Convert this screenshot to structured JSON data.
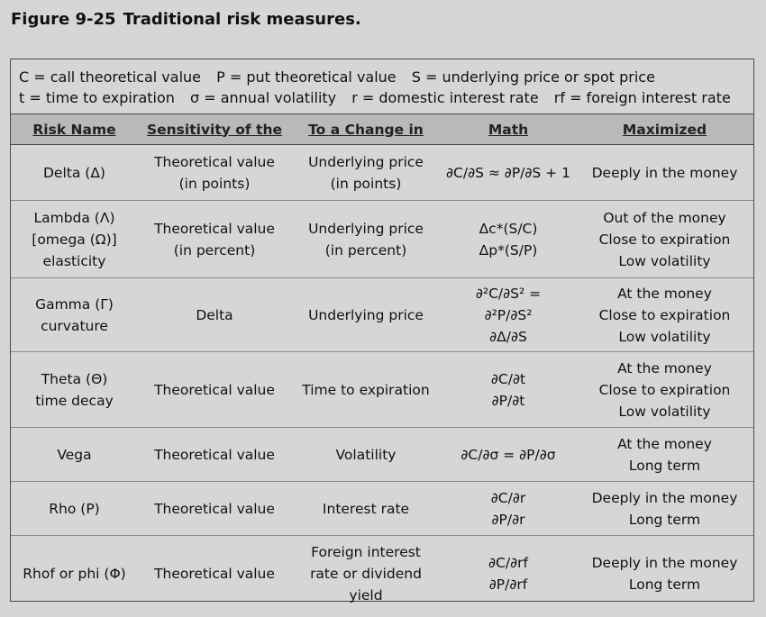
{
  "figure": {
    "number": "Figure 9-25",
    "title": "Traditional risk measures."
  },
  "legend": {
    "line1": [
      "C = call theoretical value",
      "P = put theoretical value",
      "S = underlying price or spot price"
    ],
    "line2": [
      "t = time to expiration",
      "σ = annual volatility",
      "r = domestic interest rate",
      "rf = foreign interest rate"
    ]
  },
  "table": {
    "headers": [
      "Risk Name",
      "Sensitivity of the",
      "To a Change in",
      "Math",
      "Maximized"
    ],
    "rows": [
      {
        "risk_name": [
          "Delta (Δ)"
        ],
        "sensitivity": [
          "Theoretical value",
          "(in points)"
        ],
        "change_in": [
          "Underlying price",
          "(in points)"
        ],
        "math": [
          "∂C/∂S ≈ ∂P/∂S + 1"
        ],
        "maximized": [
          "Deeply in the money"
        ]
      },
      {
        "risk_name": [
          "Lambda (Λ)",
          "[omega (Ω)]",
          "elasticity"
        ],
        "sensitivity": [
          "Theoretical value",
          "(in percent)"
        ],
        "change_in": [
          "Underlying price",
          "(in percent)"
        ],
        "math": [
          "Δc*(S/C)",
          "Δp*(S/P)"
        ],
        "maximized": [
          "Out of the money",
          "Close to expiration",
          "Low volatility"
        ]
      },
      {
        "risk_name": [
          "Gamma (Γ)",
          "curvature"
        ],
        "sensitivity": [
          "Delta"
        ],
        "change_in": [
          "Underlying price"
        ],
        "math": [
          "∂²C/∂S² =",
          "∂²P/∂S²",
          "∂Δ/∂S"
        ],
        "maximized": [
          "At the money",
          "Close to expiration",
          "Low volatility"
        ]
      },
      {
        "risk_name": [
          "Theta (Θ)",
          "time decay"
        ],
        "sensitivity": [
          "Theoretical value"
        ],
        "change_in": [
          "Time to expiration"
        ],
        "math": [
          "∂C/∂t",
          "∂P/∂t"
        ],
        "maximized": [
          "At the money",
          "Close to expiration",
          "Low volatility"
        ]
      },
      {
        "risk_name": [
          "Vega"
        ],
        "sensitivity": [
          "Theoretical value"
        ],
        "change_in": [
          "Volatility"
        ],
        "math": [
          "∂C/∂σ = ∂P/∂σ"
        ],
        "maximized": [
          "At the money",
          "Long term"
        ]
      },
      {
        "risk_name": [
          "Rho (P)"
        ],
        "sensitivity": [
          "Theoretical value"
        ],
        "change_in": [
          "Interest rate"
        ],
        "math": [
          "∂C/∂r",
          "∂P/∂r"
        ],
        "maximized": [
          "Deeply in the money",
          "Long term"
        ]
      },
      {
        "risk_name": [
          "Rhof or phi (Φ)"
        ],
        "sensitivity": [
          "Theoretical value"
        ],
        "change_in": [
          "Foreign interest",
          "rate or dividend",
          "yield"
        ],
        "math": [
          "∂C/∂rf",
          "∂P/∂rf"
        ],
        "maximized": [
          "Deeply in the money",
          "Long term"
        ]
      }
    ]
  }
}
